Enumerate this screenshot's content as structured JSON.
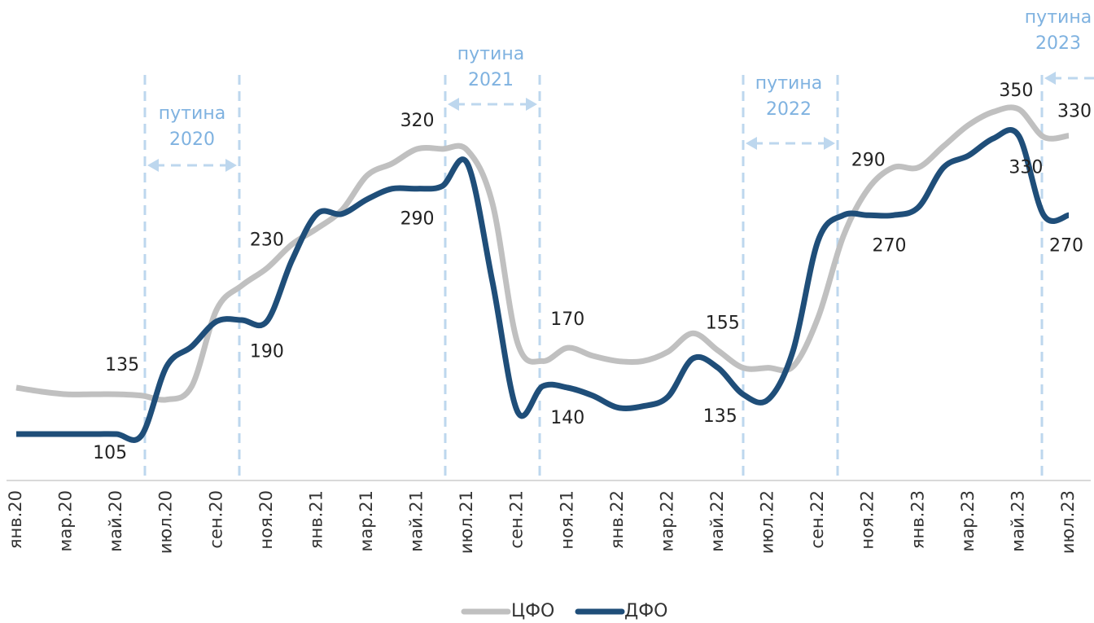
{
  "chart_data": {
    "type": "line",
    "categories": [
      "янв.20",
      null,
      "мар.20",
      null,
      "май.20",
      null,
      "июл.20",
      null,
      "сен.20",
      null,
      "ноя.20",
      null,
      "янв.21",
      null,
      "мар.21",
      null,
      "май.21",
      null,
      "июл.21",
      null,
      "сен.21",
      null,
      "ноя.21",
      null,
      "янв.22",
      null,
      "мар.22",
      null,
      "май.22",
      null,
      "июл.22",
      null,
      "сен.22",
      null,
      "ноя.22",
      null,
      "янв.23",
      null,
      "мар.23",
      null,
      "май.23",
      null,
      "июл.23"
    ],
    "series": [
      {
        "name": "ЦФО",
        "color": "#c0c0c0",
        "values": [
          140,
          137,
          135,
          135,
          135,
          134,
          131,
          141,
          199,
          217,
          230,
          248,
          260,
          274,
          300,
          309,
          320,
          320,
          319,
          279,
          174,
          160,
          170,
          164,
          160,
          160,
          167,
          181,
          168,
          155,
          155,
          156,
          193,
          254,
          290,
          306,
          306,
          322,
          338,
          348,
          350,
          329,
          330
        ],
        "value_labels": [
          null,
          null,
          null,
          null,
          "135",
          null,
          null,
          null,
          null,
          null,
          "230",
          null,
          null,
          null,
          null,
          null,
          "320",
          null,
          null,
          null,
          null,
          null,
          "170",
          null,
          null,
          null,
          null,
          null,
          null,
          "155",
          null,
          null,
          null,
          null,
          "290",
          null,
          null,
          null,
          null,
          null,
          "350",
          null,
          "330"
        ]
      },
      {
        "name": "ДФО",
        "color": "#1f4e79",
        "values": [
          105,
          105,
          105,
          105,
          105,
          104,
          156,
          171,
          190,
          191,
          190,
          236,
          271,
          271,
          282,
          290,
          290,
          292,
          309,
          220,
          122,
          141,
          140,
          134,
          125,
          126,
          133,
          162,
          155,
          135,
          131,
          168,
          251,
          270,
          270,
          270,
          276,
          306,
          315,
          328,
          330,
          270,
          270
        ],
        "value_labels": [
          null,
          null,
          null,
          null,
          "105",
          null,
          null,
          null,
          null,
          null,
          "190",
          null,
          null,
          null,
          null,
          null,
          "290",
          null,
          null,
          null,
          null,
          null,
          "140",
          null,
          null,
          null,
          null,
          null,
          null,
          "135",
          null,
          null,
          null,
          null,
          null,
          "270",
          null,
          null,
          null,
          null,
          "330",
          null,
          "270"
        ]
      }
    ],
    "annotations": [
      [
        "путина",
        "2020"
      ],
      [
        "путина",
        "2021"
      ],
      [
        "путина",
        "2022"
      ],
      [
        "путина",
        "2023"
      ]
    ],
    "ylim": [
      70,
      420
    ]
  }
}
